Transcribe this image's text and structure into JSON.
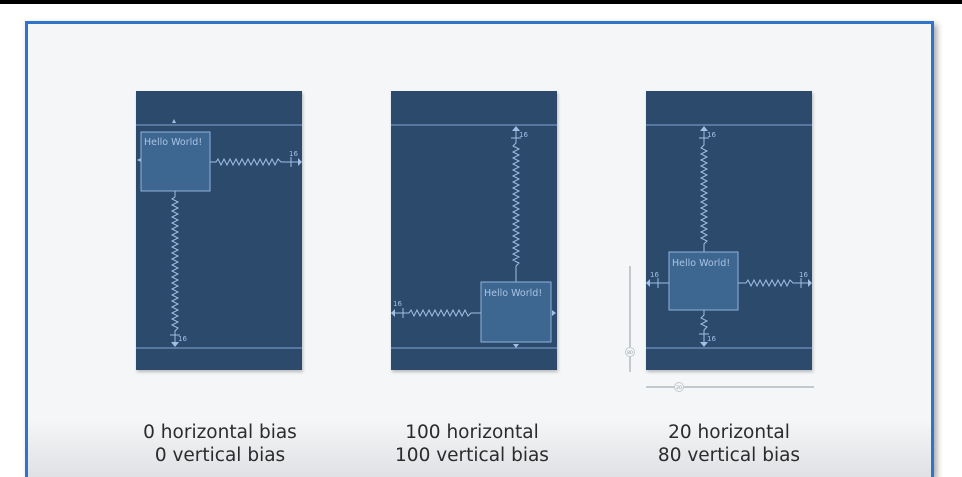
{
  "slide": {
    "examples": [
      {
        "widget_label": "Hello World!",
        "margins": {
          "right": "16",
          "bottom": "16"
        },
        "caption_line1": "0 horizontal bias",
        "caption_line2": "0 vertical bias",
        "horizontal_bias": 0,
        "vertical_bias": 0
      },
      {
        "widget_label": "Hello World!",
        "margins": {
          "top": "16",
          "left": "16"
        },
        "caption_line1": "100 horizontal",
        "caption_line2": "100 vertical bias",
        "horizontal_bias": 100,
        "vertical_bias": 100
      },
      {
        "widget_label": "Hello World!",
        "margins": {
          "top": "16",
          "left": "16",
          "right": "16",
          "bottom": "16"
        },
        "bias_indicators": {
          "vertical": "80",
          "horizontal": "20"
        },
        "caption_line1": "20 horizontal",
        "caption_line2": "80 vertical bias",
        "horizontal_bias": 20,
        "vertical_bias": 80
      }
    ]
  },
  "colors": {
    "frame_border": "#2f74c8",
    "blueprint_bg": "#2c4a6b",
    "blueprint_line": "#7fa6d4",
    "widget_fill": "#3d6690",
    "widget_text": "#a9c4e4"
  }
}
